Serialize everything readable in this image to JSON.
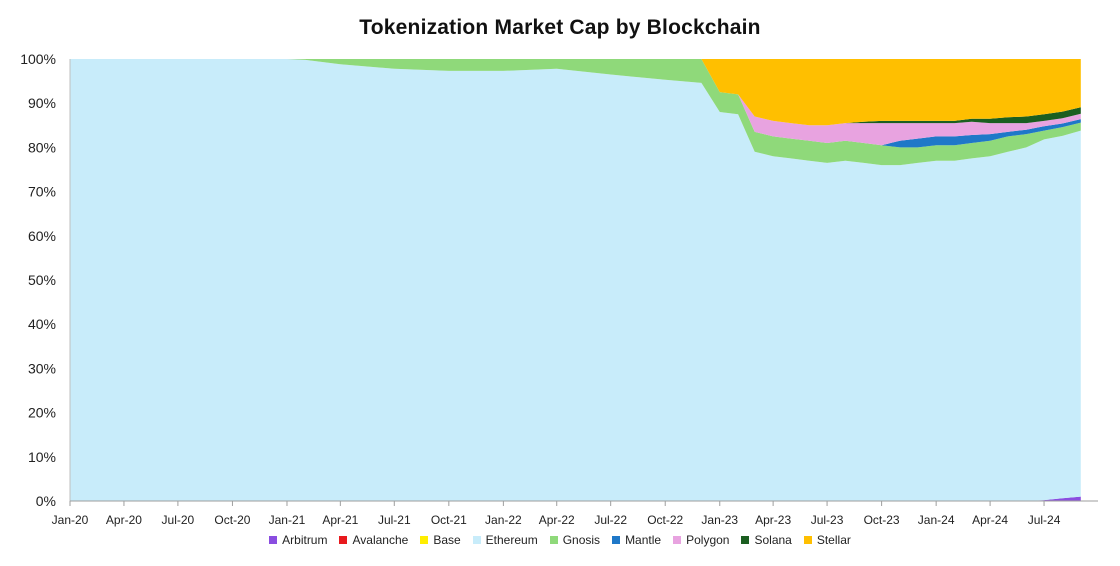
{
  "chart_data": {
    "type": "area",
    "stacked": true,
    "normalized": true,
    "title": "Tokenization Market Cap by Blockchain",
    "xlabel": "",
    "ylabel": "",
    "ylim": [
      0,
      100
    ],
    "y_ticks": [
      "0%",
      "10%",
      "20%",
      "30%",
      "40%",
      "50%",
      "60%",
      "70%",
      "80%",
      "90%",
      "100%"
    ],
    "x_ticks": [
      "Jan-20",
      "Apr-20",
      "Jul-20",
      "Oct-20",
      "Jan-21",
      "Apr-21",
      "Jul-21",
      "Oct-21",
      "Jan-22",
      "Apr-22",
      "Jul-22",
      "Oct-22",
      "Jan-23",
      "Apr-23",
      "Jul-23",
      "Oct-23",
      "Jan-24",
      "Apr-24",
      "Jul-24"
    ],
    "x": [
      "2020-01",
      "2021-01",
      "2021-02",
      "2021-04",
      "2021-07",
      "2021-10",
      "2022-01",
      "2022-04",
      "2022-07",
      "2022-10",
      "2022-12",
      "2023-01",
      "2023-02",
      "2023-03",
      "2023-04",
      "2023-05",
      "2023-06",
      "2023-07",
      "2023-08",
      "2023-09",
      "2023-10",
      "2023-11",
      "2023-12",
      "2024-01",
      "2024-02",
      "2024-03",
      "2024-04",
      "2024-05",
      "2024-06",
      "2024-07",
      "2024-08",
      "2024-09"
    ],
    "legend_position": "bottom",
    "gridlines": false,
    "series": [
      {
        "name": "Arbitrum",
        "color": "#8a4de0",
        "values": [
          0,
          0,
          0,
          0,
          0,
          0,
          0,
          0,
          0,
          0,
          0,
          0,
          0,
          0,
          0,
          0,
          0,
          0,
          0,
          0,
          0,
          0,
          0,
          0,
          0,
          0,
          0,
          0,
          0,
          0.2,
          0.6,
          1.0
        ]
      },
      {
        "name": "Avalanche",
        "color": "#e8191d",
        "values": [
          0,
          0,
          0,
          0,
          0,
          0,
          0,
          0,
          0,
          0,
          0,
          0,
          0,
          0,
          0,
          0,
          0,
          0,
          0,
          0,
          0,
          0,
          0,
          0,
          0,
          0,
          0,
          0,
          0,
          0,
          0,
          0
        ]
      },
      {
        "name": "Base",
        "color": "#ffee00",
        "values": [
          0,
          0,
          0,
          0,
          0,
          0,
          0,
          0,
          0,
          0,
          0,
          0,
          0,
          0,
          0,
          0,
          0,
          0,
          0,
          0,
          0,
          0,
          0,
          0,
          0,
          0,
          0,
          0,
          0,
          0,
          0,
          0
        ]
      },
      {
        "name": "Ethereum",
        "color": "#c8ecfa",
        "values": [
          100,
          100,
          99.8,
          98.8,
          97.8,
          97.3,
          97.3,
          97.8,
          96.5,
          95.3,
          94.6,
          88,
          87.5,
          79,
          78,
          77.5,
          77,
          76.5,
          77,
          76.5,
          76,
          76,
          76.5,
          77,
          77,
          77.5,
          78,
          79,
          80,
          81.6,
          82,
          82.8
        ]
      },
      {
        "name": "Gnosis",
        "color": "#8fd97a",
        "values": [
          0,
          0,
          0.2,
          1.2,
          2.2,
          2.7,
          2.7,
          2.2,
          3.5,
          4.7,
          5.4,
          4.5,
          4.5,
          4.5,
          4.5,
          4.5,
          4.5,
          4.5,
          4.5,
          4.5,
          4.5,
          4.0,
          3.5,
          3.5,
          3.5,
          3.5,
          3.5,
          3.5,
          3.0,
          2.0,
          2.0,
          1.8
        ]
      },
      {
        "name": "Mantle",
        "color": "#1f78c8",
        "values": [
          0,
          0,
          0,
          0,
          0,
          0,
          0,
          0,
          0,
          0,
          0,
          0,
          0,
          0,
          0,
          0,
          0,
          0,
          0,
          0,
          0,
          1.5,
          2.0,
          2.0,
          2.0,
          1.8,
          1.5,
          1.0,
          1.0,
          1.0,
          0.8,
          0.8
        ]
      },
      {
        "name": "Polygon",
        "color": "#e8a3e0",
        "values": [
          0,
          0,
          0,
          0,
          0,
          0,
          0,
          0,
          0,
          0,
          0,
          0,
          0,
          3.5,
          3.5,
          3.5,
          3.5,
          4.0,
          4.0,
          4.5,
          5.0,
          4.0,
          3.5,
          3.0,
          3.0,
          3.0,
          2.5,
          2.0,
          1.5,
          1.2,
          1.2,
          1.2
        ]
      },
      {
        "name": "Solana",
        "color": "#1b5e20",
        "values": [
          0,
          0,
          0,
          0,
          0,
          0,
          0,
          0,
          0,
          0,
          0,
          0,
          0,
          0,
          0,
          0,
          0,
          0,
          0,
          0.3,
          0.5,
          0.5,
          0.5,
          0.5,
          0.5,
          0.7,
          1.0,
          1.3,
          1.5,
          1.5,
          1.5,
          1.5
        ]
      },
      {
        "name": "Stellar",
        "color": "#ffbf00",
        "values": [
          0,
          0,
          0,
          0,
          0,
          0,
          0,
          0,
          0,
          0,
          0,
          7.5,
          8,
          13,
          14,
          14.5,
          15,
          15,
          14.5,
          14.2,
          14,
          14,
          14,
          14,
          14,
          13.5,
          13.5,
          13.2,
          13,
          12.5,
          11.9,
          10.9
        ]
      }
    ]
  }
}
